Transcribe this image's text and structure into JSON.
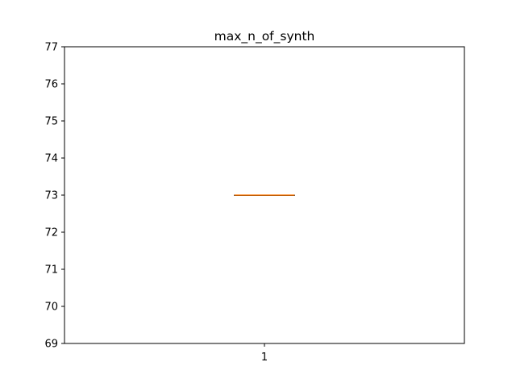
{
  "chart_data": {
    "type": "box",
    "title": "max_n_of_synth",
    "xlabel": "",
    "ylabel": "",
    "categories": [
      "1"
    ],
    "ylim": [
      69,
      77
    ],
    "yticks": [
      "69",
      "70",
      "71",
      "72",
      "73",
      "74",
      "75",
      "76",
      "77"
    ],
    "grid": false,
    "boxes": [
      {
        "label": "1",
        "min": 73,
        "q1": 73,
        "median": 73,
        "q3": 73,
        "max": 73
      }
    ],
    "colors": {
      "box": "#000000",
      "median": "#ff7f0e"
    }
  }
}
